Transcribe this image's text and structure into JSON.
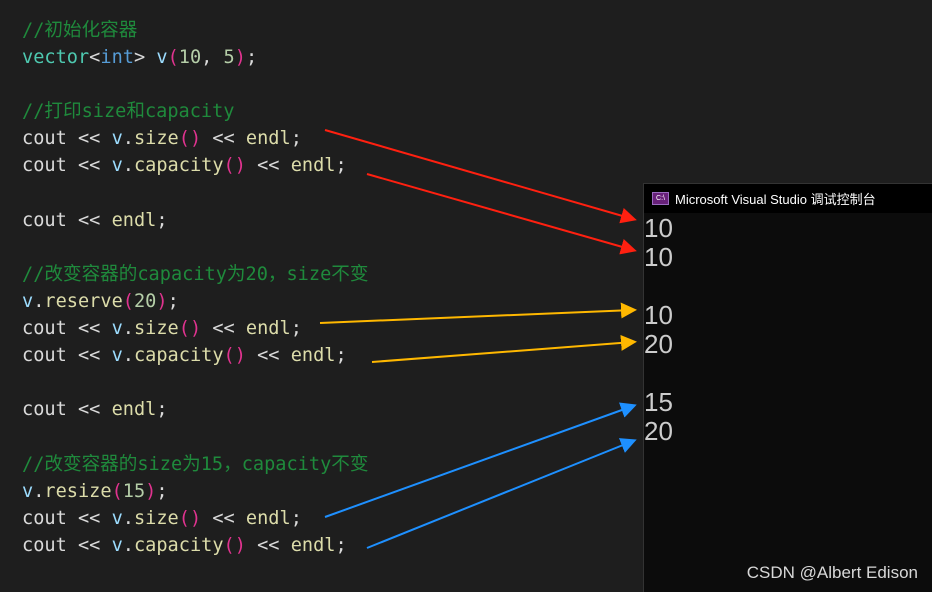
{
  "colors": {
    "comment": "#1f8a3c",
    "type": "#4ec9b0",
    "keyword": "#569cd6",
    "var": "#9cdcfe",
    "paren": "#e0338f",
    "number": "#b5cea8",
    "func": "#dcdcaa",
    "plain": "#dadada"
  },
  "code_lines": [
    [
      [
        "//初始化容器",
        "comment"
      ]
    ],
    [
      [
        "vector",
        "type"
      ],
      [
        "<",
        "plain"
      ],
      [
        "int",
        "keyword"
      ],
      [
        "> ",
        "plain"
      ],
      [
        "v",
        "var"
      ],
      [
        "(",
        "paren"
      ],
      [
        "10",
        "number"
      ],
      [
        ", ",
        "plain"
      ],
      [
        "5",
        "number"
      ],
      [
        ")",
        "paren"
      ],
      [
        ";",
        "plain"
      ]
    ],
    [],
    [
      [
        "//打印size和capacity",
        "comment"
      ]
    ],
    [
      [
        "cout << ",
        "plain"
      ],
      [
        "v",
        "var"
      ],
      [
        ".",
        "plain"
      ],
      [
        "size",
        "func"
      ],
      [
        "()",
        "paren"
      ],
      [
        " << ",
        "plain"
      ],
      [
        "endl",
        "func"
      ],
      [
        ";",
        "plain"
      ]
    ],
    [
      [
        "cout << ",
        "plain"
      ],
      [
        "v",
        "var"
      ],
      [
        ".",
        "plain"
      ],
      [
        "capacity",
        "func"
      ],
      [
        "()",
        "paren"
      ],
      [
        " << ",
        "plain"
      ],
      [
        "endl",
        "func"
      ],
      [
        ";",
        "plain"
      ]
    ],
    [],
    [
      [
        "cout << ",
        "plain"
      ],
      [
        "endl",
        "func"
      ],
      [
        ";",
        "plain"
      ]
    ],
    [],
    [
      [
        "//改变容器的capacity为20，size不变",
        "comment"
      ]
    ],
    [
      [
        "v",
        "var"
      ],
      [
        ".",
        "plain"
      ],
      [
        "reserve",
        "func"
      ],
      [
        "(",
        "paren"
      ],
      [
        "20",
        "number"
      ],
      [
        ")",
        "paren"
      ],
      [
        ";",
        "plain"
      ]
    ],
    [
      [
        "cout << ",
        "plain"
      ],
      [
        "v",
        "var"
      ],
      [
        ".",
        "plain"
      ],
      [
        "size",
        "func"
      ],
      [
        "()",
        "paren"
      ],
      [
        " << ",
        "plain"
      ],
      [
        "endl",
        "func"
      ],
      [
        ";",
        "plain"
      ]
    ],
    [
      [
        "cout << ",
        "plain"
      ],
      [
        "v",
        "var"
      ],
      [
        ".",
        "plain"
      ],
      [
        "capacity",
        "func"
      ],
      [
        "()",
        "paren"
      ],
      [
        " << ",
        "plain"
      ],
      [
        "endl",
        "func"
      ],
      [
        ";",
        "plain"
      ]
    ],
    [],
    [
      [
        "cout << ",
        "plain"
      ],
      [
        "endl",
        "func"
      ],
      [
        ";",
        "plain"
      ]
    ],
    [],
    [
      [
        "//改变容器的size为15，capacity不变",
        "comment"
      ]
    ],
    [
      [
        "v",
        "var"
      ],
      [
        ".",
        "plain"
      ],
      [
        "resize",
        "func"
      ],
      [
        "(",
        "paren"
      ],
      [
        "15",
        "number"
      ],
      [
        ")",
        "paren"
      ],
      [
        ";",
        "plain"
      ]
    ],
    [
      [
        "cout << ",
        "plain"
      ],
      [
        "v",
        "var"
      ],
      [
        ".",
        "plain"
      ],
      [
        "size",
        "func"
      ],
      [
        "()",
        "paren"
      ],
      [
        " << ",
        "plain"
      ],
      [
        "endl",
        "func"
      ],
      [
        ";",
        "plain"
      ]
    ],
    [
      [
        "cout << ",
        "plain"
      ],
      [
        "v",
        "var"
      ],
      [
        ".",
        "plain"
      ],
      [
        "capacity",
        "func"
      ],
      [
        "()",
        "paren"
      ],
      [
        " << ",
        "plain"
      ],
      [
        "endl",
        "func"
      ],
      [
        ";",
        "plain"
      ]
    ]
  ],
  "console": {
    "icon": "C:\\",
    "title": "Microsoft Visual Studio 调试控制台",
    "output": [
      "10",
      "10",
      "",
      "10",
      "20",
      "",
      "15",
      "20"
    ]
  },
  "arrow_colors": {
    "red": "#ff2010",
    "yellow": "#ffb800",
    "blue": "#1e90ff"
  },
  "watermark": "CSDN @Albert Edison"
}
